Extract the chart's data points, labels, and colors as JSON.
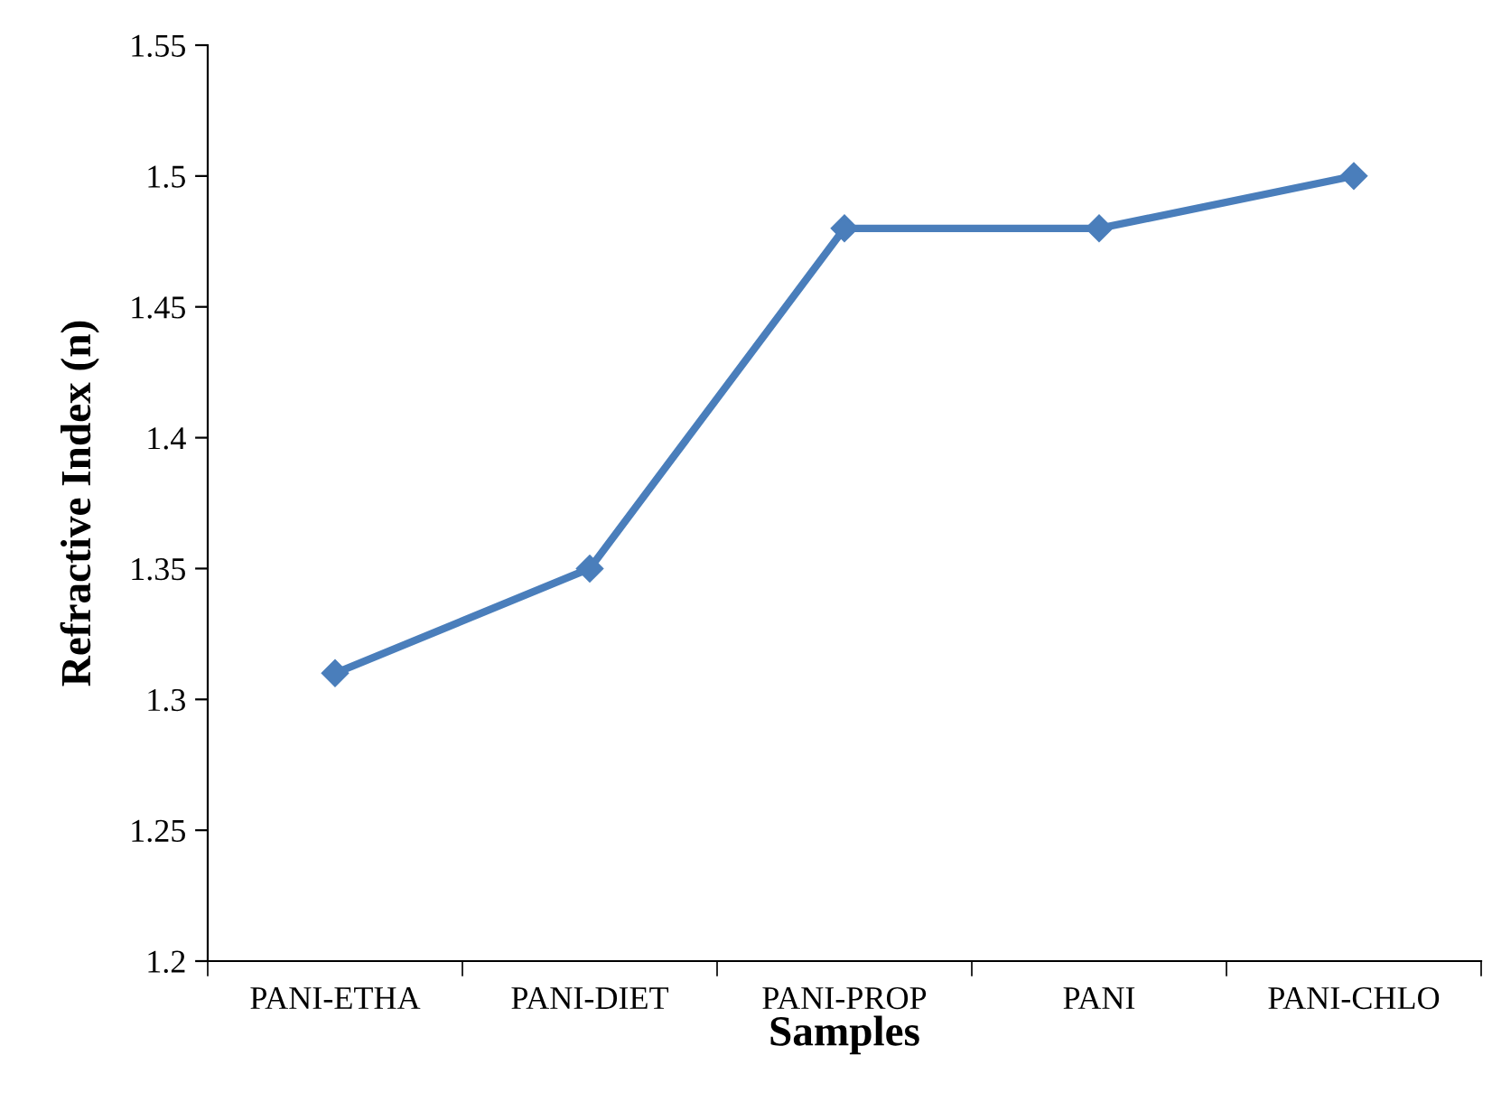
{
  "chart_data": {
    "type": "line",
    "xlabel": "Samples",
    "ylabel": "Refractive Index (n)",
    "categories": [
      "PANI-ETHA",
      "PANI-DIET",
      "PANI-PROP",
      "PANI",
      "PANI-CHLO"
    ],
    "series": [
      {
        "color": "#4a7ebb",
        "values": [
          1.31,
          1.35,
          1.48,
          1.48,
          1.5
        ]
      }
    ],
    "ylim": [
      1.2,
      1.55
    ],
    "yticks": [
      1.2,
      1.25,
      1.3,
      1.35,
      1.4,
      1.45,
      1.5,
      1.55
    ],
    "marker": "diamond",
    "line_style": "solid",
    "grid": false
  }
}
